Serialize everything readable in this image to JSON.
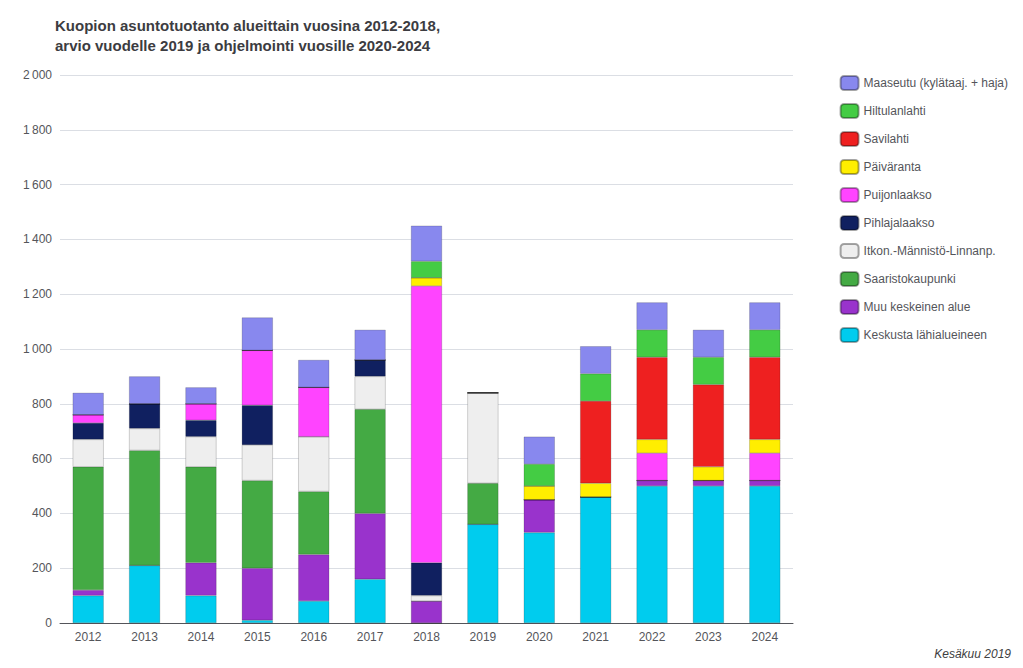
{
  "chart_data": {
    "type": "bar",
    "title": "Kuopion asuntotuotanto alueittain vuosina 2012-2018,\narvio vuodelle 2019 ja ohjelmointi vuosille 2020-2024",
    "categories": [
      "2012",
      "2013",
      "2014",
      "2015",
      "2016",
      "2017",
      "2018",
      "2019",
      "2020",
      "2021",
      "2022",
      "2023",
      "2024"
    ],
    "series": [
      {
        "name": "Keskusta lähialueineen",
        "color": "#00CCEE",
        "values": [
          100,
          210,
          100,
          10,
          80,
          160,
          0,
          360,
          330,
          460,
          500,
          500,
          500
        ]
      },
      {
        "name": "Muu keskeinen alue",
        "color": "#9933CC",
        "values": [
          20,
          0,
          120,
          190,
          170,
          240,
          80,
          0,
          120,
          0,
          20,
          20,
          20
        ]
      },
      {
        "name": "Saaristokaupunki",
        "color": "#44AA44",
        "values": [
          450,
          420,
          350,
          320,
          230,
          380,
          0,
          150,
          0,
          0,
          0,
          0,
          0
        ]
      },
      {
        "name": "Itkon.-Männistö-Linnanp.",
        "color": "#EEEEEE",
        "values": [
          100,
          80,
          110,
          130,
          200,
          120,
          20,
          330,
          0,
          0,
          0,
          0,
          0
        ]
      },
      {
        "name": "Pihlajalaakso",
        "color": "#102060",
        "values": [
          60,
          90,
          60,
          145,
          0,
          60,
          120,
          0,
          0,
          0,
          0,
          0,
          0
        ]
      },
      {
        "name": "Puijonlaakso",
        "color": "#FF44FF",
        "values": [
          30,
          0,
          60,
          200,
          180,
          0,
          1010,
          0,
          0,
          0,
          100,
          0,
          100
        ]
      },
      {
        "name": "Päiväranta",
        "color": "#FFEE00",
        "values": [
          0,
          0,
          0,
          0,
          0,
          0,
          30,
          0,
          50,
          50,
          50,
          50,
          50
        ]
      },
      {
        "name": "Savilahti",
        "color": "#EE2020",
        "values": [
          0,
          0,
          0,
          0,
          0,
          0,
          0,
          0,
          0,
          300,
          300,
          300,
          300
        ]
      },
      {
        "name": "Hiltulanlahti",
        "color": "#44CC44",
        "values": [
          0,
          0,
          0,
          0,
          0,
          0,
          60,
          0,
          80,
          100,
          100,
          100,
          100
        ]
      },
      {
        "name": "Maaseutu (kylätaaj. + haja)",
        "color": "#8888EE",
        "values": [
          80,
          100,
          60,
          120,
          100,
          110,
          130,
          0,
          100,
          100,
          100,
          100,
          100
        ]
      }
    ],
    "ylim": [
      0,
      2000
    ],
    "yticks": [
      0,
      200,
      400,
      600,
      800,
      {
        "value": 1000,
        "label": "1 000"
      },
      {
        "value": 1200,
        "label": "1 200"
      },
      {
        "value": 1400,
        "label": "1 400"
      },
      {
        "value": 1600,
        "label": "1 600"
      },
      {
        "value": 1800,
        "label": "1 800"
      },
      {
        "value": 2000,
        "label": "2 000"
      }
    ],
    "stacked": true,
    "grid": true,
    "legend": "upper right",
    "annotations": [
      "Kesäkuu 2019"
    ]
  }
}
